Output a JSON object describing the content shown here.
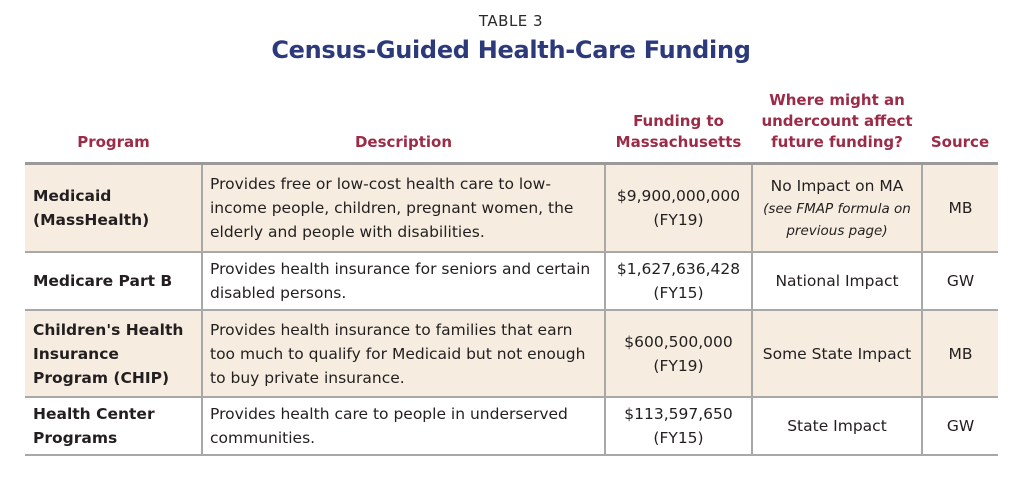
{
  "kicker": "TABLE 3",
  "title": "Census-Guided Health-Care Funding",
  "headers": {
    "program": "Program",
    "description": "Description",
    "funding": "Funding to Massachusetts",
    "impact": "Where might an undercount affect future funding?",
    "source": "Source"
  },
  "rows": [
    {
      "program": "Medicaid (MassHealth)",
      "description": "Provides free or low-cost health care to low-income people, children, pregnant women, the elderly and people with disabilities.",
      "amount": "$9,900,000,000",
      "fy": "(FY19)",
      "impact": "No Impact on MA",
      "impact_note": "(see FMAP formula on previous page)",
      "source": "MB",
      "shaded": true
    },
    {
      "program": "Medicare Part B",
      "description": "Provides health insurance for seniors and certain disabled persons.",
      "amount": "$1,627,636,428",
      "fy": "(FY15)",
      "impact": "National Impact",
      "impact_note": "",
      "source": "GW",
      "shaded": false
    },
    {
      "program": "Children's Health Insurance Program (CHIP)",
      "description": "Provides health insurance to families that earn too much to qualify for Medicaid but not enough to buy private insurance.",
      "amount": "$600,500,000",
      "fy": "(FY19)",
      "impact": "Some State Impact",
      "impact_note": "",
      "source": "MB",
      "shaded": true
    },
    {
      "program": "Health Center Programs",
      "description": "Provides health care to people in underserved communities.",
      "amount": "$113,597,650",
      "fy": "(FY15)",
      "impact": "State Impact",
      "impact_note": "",
      "source": "GW",
      "shaded": false
    }
  ]
}
